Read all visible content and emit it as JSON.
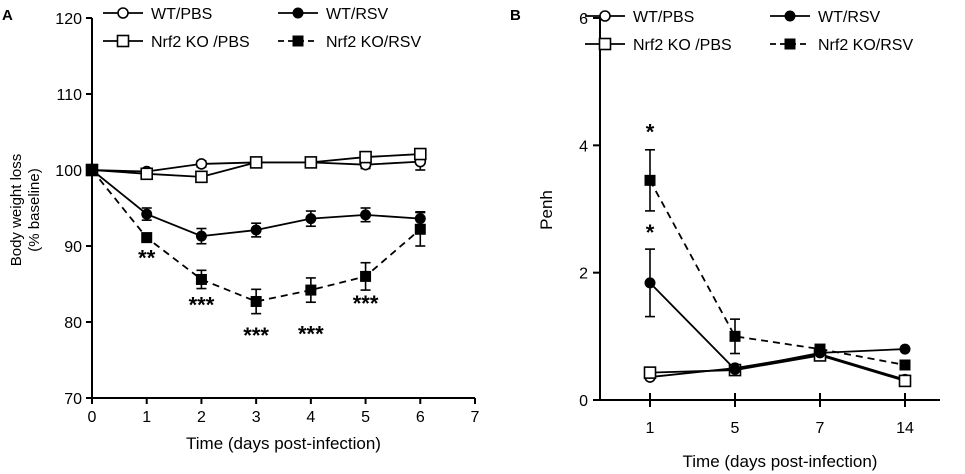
{
  "chart_data": [
    {
      "panel": "A",
      "type": "line",
      "xlabel": "Time (days post-infection)",
      "ylabel": [
        "Body weight loss",
        "(% baseline)"
      ],
      "xlim": [
        0,
        7
      ],
      "ylim": [
        70,
        120
      ],
      "xticks": [
        0,
        1,
        2,
        3,
        4,
        5,
        6,
        7
      ],
      "yticks": [
        70,
        80,
        90,
        100,
        110,
        120
      ],
      "grid": false,
      "legend_position": "top",
      "series": [
        {
          "name": "WT/PBS",
          "style": "solid",
          "marker": "circle-open",
          "x": [
            0,
            1,
            2,
            3,
            4,
            5,
            6
          ],
          "y": [
            100,
            99.8,
            100.8,
            101,
            101,
            100.7,
            101.1
          ],
          "err": [
            0,
            0.4,
            0.4,
            0.5,
            0.4,
            0.5,
            1.1
          ]
        },
        {
          "name": "Nrf2 KO /PBS",
          "style": "solid",
          "marker": "square-open",
          "x": [
            0,
            1,
            2,
            3,
            4,
            5,
            6
          ],
          "y": [
            100,
            99.5,
            99.1,
            101,
            101,
            101.7,
            102.1
          ],
          "err": [
            0,
            0.4,
            0.4,
            0.4,
            0.4,
            0.4,
            0.5
          ]
        },
        {
          "name": "WT/RSV",
          "style": "solid",
          "marker": "circle-filled",
          "x": [
            0,
            1,
            2,
            3,
            4,
            5,
            6
          ],
          "y": [
            100,
            94.2,
            91.3,
            92.1,
            93.6,
            94.1,
            93.6
          ],
          "err": [
            0,
            0.8,
            1.0,
            0.9,
            1.0,
            0.9,
            0.9
          ]
        },
        {
          "name": "Nrf2 KO/RSV",
          "style": "dashed",
          "marker": "square-filled",
          "x": [
            0,
            1,
            2,
            3,
            4,
            5,
            6
          ],
          "y": [
            100,
            91.1,
            85.6,
            82.7,
            84.2,
            86,
            92.2
          ],
          "err": [
            0,
            0.6,
            1.2,
            1.6,
            1.6,
            1.8,
            2.2
          ]
        }
      ],
      "annotations": [
        {
          "x": 1,
          "y": 88.5,
          "text": "**"
        },
        {
          "x": 2,
          "y": 82.3,
          "text": "***"
        },
        {
          "x": 3,
          "y": 78.3,
          "text": "***"
        },
        {
          "x": 4,
          "y": 78.5,
          "text": "***"
        },
        {
          "x": 5,
          "y": 82.5,
          "text": "***"
        }
      ]
    },
    {
      "panel": "B",
      "type": "line",
      "xlabel": "Time (days post-infection)",
      "ylabel": [
        "Penh"
      ],
      "x_categories": [
        "1",
        "5",
        "7",
        "14"
      ],
      "ylim": [
        0,
        6
      ],
      "yticks": [
        0,
        2,
        4,
        6
      ],
      "grid": false,
      "legend_position": "top",
      "series": [
        {
          "name": "WT/PBS",
          "style": "solid",
          "marker": "circle-open",
          "y": [
            0.36,
            0.5,
            0.72,
            0.32
          ],
          "err": [
            0,
            0,
            0,
            0
          ]
        },
        {
          "name": "Nrf2 KO /PBS",
          "style": "solid",
          "marker": "square-open",
          "y": [
            0.43,
            0.47,
            0.7,
            0.3
          ],
          "err": [
            0,
            0,
            0,
            0
          ]
        },
        {
          "name": "WT/RSV",
          "style": "solid",
          "marker": "circle-filled",
          "y": [
            1.84,
            0.48,
            0.74,
            0.8
          ],
          "err": [
            0.53,
            0,
            0,
            0
          ]
        },
        {
          "name": "Nrf2 KO/RSV",
          "style": "dashed",
          "marker": "square-filled",
          "y": [
            3.45,
            1.0,
            0.8,
            0.55
          ],
          "err": [
            0.48,
            0.27,
            0,
            0
          ]
        }
      ],
      "annotations": [
        {
          "category": "1",
          "y": 4.28,
          "text": "*"
        },
        {
          "category": "1",
          "y": 2.7,
          "text": "*"
        }
      ]
    }
  ]
}
